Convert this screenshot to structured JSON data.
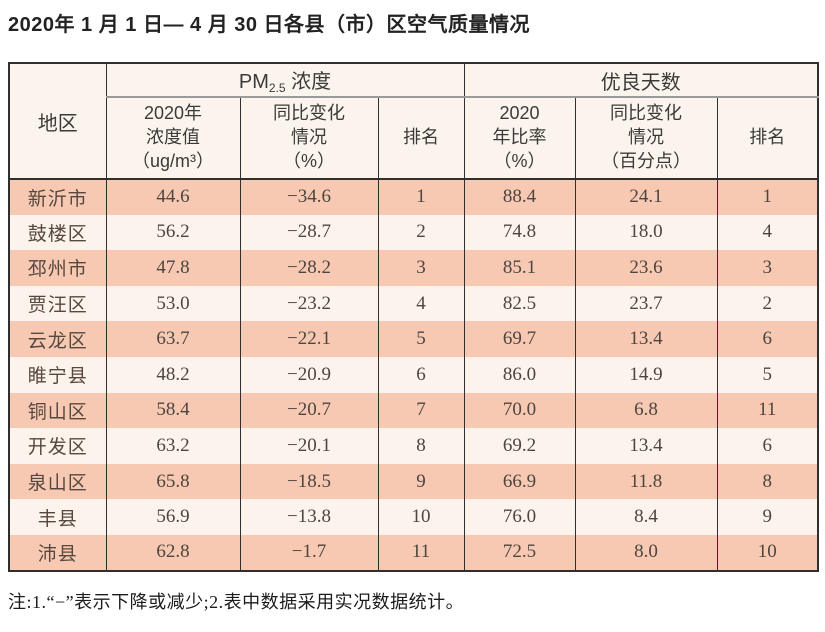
{
  "title": "2020年 1 月 1 日— 4 月 30 日各县（市）区空气质量情况",
  "table": {
    "region_header": "地区",
    "pm25_group": {
      "prefix": "PM",
      "sub": "2.5",
      "suffix": " 浓度"
    },
    "good_days_group": "优良天数",
    "sub_headers": [
      "2020年\n浓度值\n（ug/m³）",
      "同比变化\n情况\n（%）",
      "排名",
      "2020\n年比率\n（%）",
      "同比变化\n情况\n（百分点）",
      "排名"
    ],
    "rows": [
      {
        "region": "新沂市",
        "pm_value": "44.6",
        "pm_change": "−34.6",
        "pm_rank": "1",
        "gd_rate": "88.4",
        "gd_change": "24.1",
        "gd_rank": "1"
      },
      {
        "region": "鼓楼区",
        "pm_value": "56.2",
        "pm_change": "−28.7",
        "pm_rank": "2",
        "gd_rate": "74.8",
        "gd_change": "18.0",
        "gd_rank": "4"
      },
      {
        "region": "邳州市",
        "pm_value": "47.8",
        "pm_change": "−28.2",
        "pm_rank": "3",
        "gd_rate": "85.1",
        "gd_change": "23.6",
        "gd_rank": "3"
      },
      {
        "region": "贾汪区",
        "pm_value": "53.0",
        "pm_change": "−23.2",
        "pm_rank": "4",
        "gd_rate": "82.5",
        "gd_change": "23.7",
        "gd_rank": "2"
      },
      {
        "region": "云龙区",
        "pm_value": "63.7",
        "pm_change": "−22.1",
        "pm_rank": "5",
        "gd_rate": "69.7",
        "gd_change": "13.4",
        "gd_rank": "6"
      },
      {
        "region": "睢宁县",
        "pm_value": "48.2",
        "pm_change": "−20.9",
        "pm_rank": "6",
        "gd_rate": "86.0",
        "gd_change": "14.9",
        "gd_rank": "5"
      },
      {
        "region": "铜山区",
        "pm_value": "58.4",
        "pm_change": "−20.7",
        "pm_rank": "7",
        "gd_rate": "70.0",
        "gd_change": "6.8",
        "gd_rank": "11"
      },
      {
        "region": "开发区",
        "pm_value": "63.2",
        "pm_change": "−20.1",
        "pm_rank": "8",
        "gd_rate": "69.2",
        "gd_change": "13.4",
        "gd_rank": "6"
      },
      {
        "region": "泉山区",
        "pm_value": "65.8",
        "pm_change": "−18.5",
        "pm_rank": "9",
        "gd_rate": "66.9",
        "gd_change": "11.8",
        "gd_rank": "8"
      },
      {
        "region": "丰县",
        "pm_value": "56.9",
        "pm_change": "−13.8",
        "pm_rank": "10",
        "gd_rate": "76.0",
        "gd_change": "8.4",
        "gd_rank": "9"
      },
      {
        "region": "沛县",
        "pm_value": "62.8",
        "pm_change": "−1.7",
        "pm_rank": "11",
        "gd_rate": "72.5",
        "gd_change": "8.0",
        "gd_rank": "10"
      }
    ]
  },
  "note": "注:1.“−”表示下降或减少;2.表中数据采用实况数据统计。",
  "colors": {
    "odd_row_bg": "#f8c9b2",
    "even_row_bg": "#fcf3ec",
    "header_bg": "#faf4ed",
    "border_dark": "#2f2f2f",
    "group_divider": "#9a9a9a",
    "text": "#4c4540"
  }
}
